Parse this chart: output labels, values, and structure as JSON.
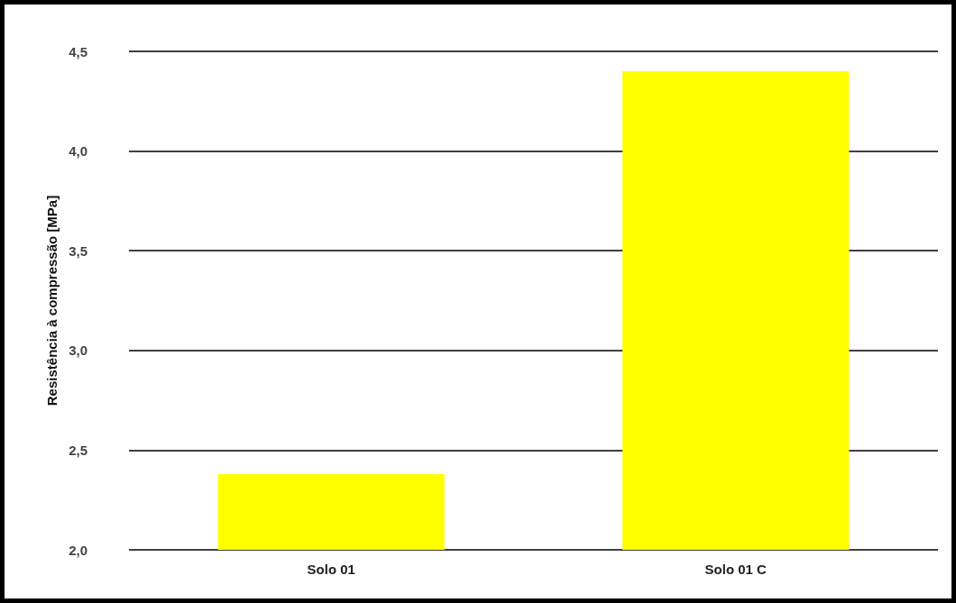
{
  "chart_data": {
    "type": "bar",
    "ylabel": "Resistência à compressão [MPa]",
    "categories": [
      "Solo 01",
      "Solo 01 C"
    ],
    "values": [
      2.38,
      4.4
    ],
    "color": "#ffff00",
    "ylim": [
      2,
      4.5
    ],
    "yticks": [
      {
        "value": 2,
        "label": "2,0"
      },
      {
        "value": 2.5,
        "label": "2,5"
      },
      {
        "value": 3,
        "label": "3,0"
      },
      {
        "value": 3.5,
        "label": "3,5"
      },
      {
        "value": 4,
        "label": "4,0"
      },
      {
        "value": 4.5,
        "label": "4,5"
      }
    ],
    "grid": "y"
  }
}
